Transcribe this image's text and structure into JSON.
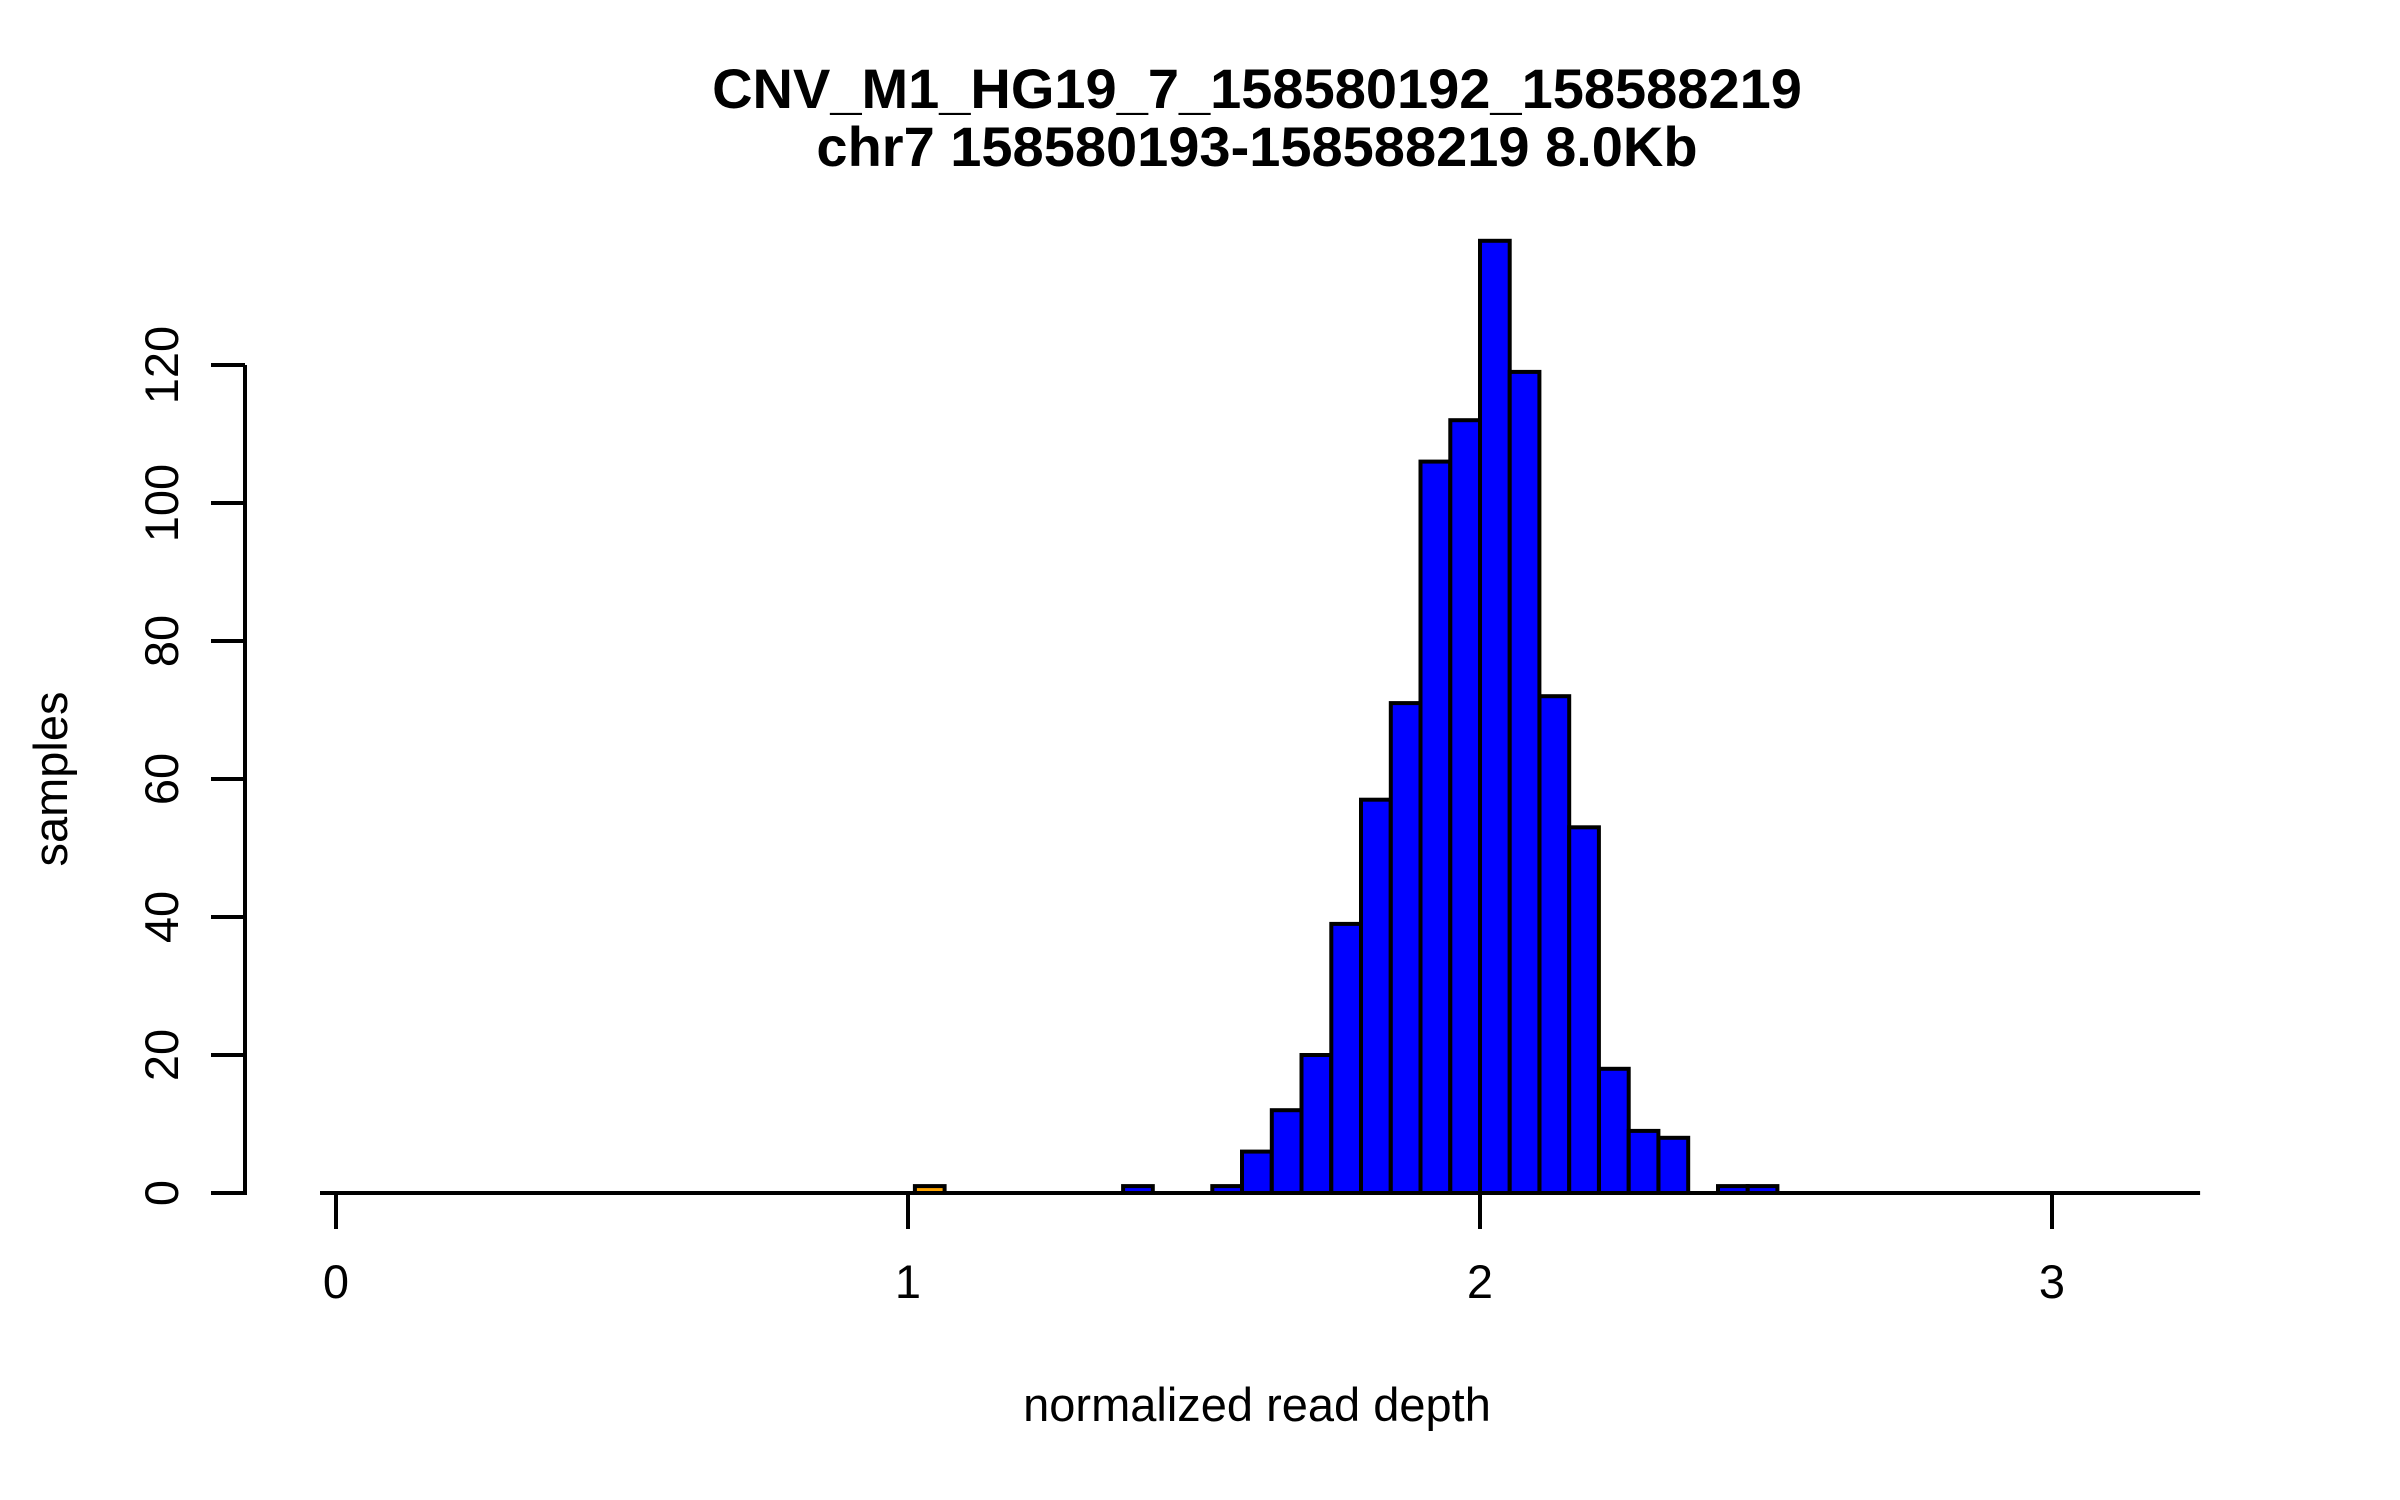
{
  "chart_data": {
    "type": "bar",
    "subtype": "histogram",
    "title": "CNV_M1_HG19_7_158580192_158588219",
    "subtitle": "chr7 158580193-158588219 8.0Kb",
    "xlabel": "normalized read depth",
    "ylabel": "samples",
    "x_ticks": [
      0,
      1,
      2,
      3
    ],
    "y_ticks": [
      0,
      20,
      40,
      60,
      80,
      100,
      120
    ],
    "xlim": [
      -0.028,
      3.259
    ],
    "ylim": [
      0,
      142
    ],
    "grid": false,
    "legend": "none",
    "bin_width": 0.052,
    "colors": {
      "bar_fill": "#0000ff",
      "highlight_fill": "#ffa500",
      "stroke": "#000000",
      "axis": "#000000",
      "background": "#ffffff"
    },
    "bars": [
      {
        "x0": 1.012,
        "x1": 1.064,
        "count": 1,
        "highlight": true
      },
      {
        "x0": 1.376,
        "x1": 1.428,
        "count": 1,
        "highlight": false
      },
      {
        "x0": 1.532,
        "x1": 1.584,
        "count": 1,
        "highlight": false
      },
      {
        "x0": 1.584,
        "x1": 1.636,
        "count": 6,
        "highlight": false
      },
      {
        "x0": 1.636,
        "x1": 1.688,
        "count": 12,
        "highlight": false
      },
      {
        "x0": 1.688,
        "x1": 1.74,
        "count": 20,
        "highlight": false
      },
      {
        "x0": 1.74,
        "x1": 1.792,
        "count": 39,
        "highlight": false
      },
      {
        "x0": 1.792,
        "x1": 1.844,
        "count": 57,
        "highlight": false
      },
      {
        "x0": 1.844,
        "x1": 1.896,
        "count": 71,
        "highlight": false
      },
      {
        "x0": 1.896,
        "x1": 1.948,
        "count": 106,
        "highlight": false
      },
      {
        "x0": 1.948,
        "x1": 2.0,
        "count": 112,
        "highlight": false
      },
      {
        "x0": 2.0,
        "x1": 2.052,
        "count": 138,
        "highlight": false
      },
      {
        "x0": 2.052,
        "x1": 2.104,
        "count": 119,
        "highlight": false
      },
      {
        "x0": 2.104,
        "x1": 2.156,
        "count": 72,
        "highlight": false
      },
      {
        "x0": 2.156,
        "x1": 2.208,
        "count": 53,
        "highlight": false
      },
      {
        "x0": 2.208,
        "x1": 2.26,
        "count": 18,
        "highlight": false
      },
      {
        "x0": 2.26,
        "x1": 2.312,
        "count": 9,
        "highlight": false
      },
      {
        "x0": 2.312,
        "x1": 2.364,
        "count": 8,
        "highlight": false
      },
      {
        "x0": 2.416,
        "x1": 2.468,
        "count": 1,
        "highlight": false
      },
      {
        "x0": 2.468,
        "x1": 2.52,
        "count": 1,
        "highlight": false
      }
    ]
  }
}
